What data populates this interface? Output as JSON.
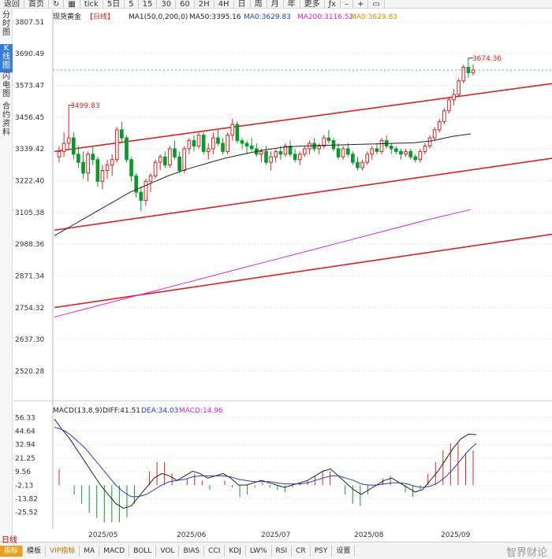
{
  "toolbar": {
    "items": [
      "返回",
      "首页",
      "↻",
      "▦",
      "tick",
      "5日",
      "5",
      "15",
      "30",
      "60",
      "2H",
      "4H",
      "日",
      "周",
      "月",
      "年",
      "更多",
      "ƒx",
      "–",
      "+",
      "▭"
    ]
  },
  "leftnav": {
    "items": [
      "分时图",
      "K线图",
      "闪电图",
      "合约资料"
    ],
    "active_index": 1
  },
  "legend": {
    "name": "现货黄金",
    "period": "【日线】",
    "ma1": "MA1(50,0,200,0)",
    "ma50": "MA50:3395.16",
    "ma0": "MA0:3629.83",
    "ma200": "MA200:3116.52",
    "ma0b": "MA0:3629.83"
  },
  "macd_legend": {
    "name": "MACD(13,8,9)",
    "diff": "DIFF:41.51",
    "dea": "DEA:34.03",
    "macd": "MACD:14.96"
  },
  "annotations": {
    "high": "3674.36",
    "low_label": "3499.83"
  },
  "x_labels": [
    "2025/05",
    "2025/06",
    "2025/07",
    "2025/08",
    "2025/09"
  ],
  "period_label": "日线",
  "bottom_tabs": [
    "指标",
    "模板",
    "VIP指标",
    "MA",
    "MACD",
    "BOLL",
    "VOL",
    "BIAS",
    "CCI",
    "KDJ",
    "LW%",
    "RSI",
    "CR",
    "PSY",
    "设置"
  ],
  "watermark": "智界财论",
  "colors": {
    "up": "#e02020",
    "down": "#0a9a2a",
    "ma50": "#222222",
    "ma200": "#e020e0",
    "dea": "#2040c0",
    "grid": "#d8d8d8"
  },
  "chart_data": [
    {
      "type": "candlestick",
      "title": "现货黄金【日线】",
      "y_ticks": [
        3807.51,
        3690.49,
        3573.47,
        3456.45,
        3339.42,
        3222.4,
        3105.38,
        2988.36,
        2871.34,
        2754.32,
        2637.3,
        2520.28
      ],
      "ylim": [
        2490,
        3830
      ],
      "x_ticks": [
        "2025/05",
        "2025/06",
        "2025/07",
        "2025/08",
        "2025/09"
      ],
      "candles": [
        [
          3310,
          3350,
          3290,
          3330
        ],
        [
          3330,
          3400,
          3310,
          3360
        ],
        [
          3360,
          3500,
          3340,
          3380
        ],
        [
          3380,
          3400,
          3300,
          3320
        ],
        [
          3320,
          3350,
          3270,
          3290
        ],
        [
          3290,
          3330,
          3230,
          3250
        ],
        [
          3250,
          3330,
          3220,
          3320
        ],
        [
          3320,
          3350,
          3280,
          3300
        ],
        [
          3300,
          3310,
          3200,
          3220
        ],
        [
          3220,
          3280,
          3190,
          3260
        ],
        [
          3260,
          3300,
          3230,
          3280
        ],
        [
          3280,
          3320,
          3240,
          3300
        ],
        [
          3300,
          3420,
          3290,
          3410
        ],
        [
          3410,
          3440,
          3360,
          3380
        ],
        [
          3380,
          3390,
          3290,
          3300
        ],
        [
          3300,
          3310,
          3220,
          3240
        ],
        [
          3240,
          3250,
          3160,
          3180
        ],
        [
          3180,
          3200,
          3110,
          3150
        ],
        [
          3150,
          3230,
          3130,
          3220
        ],
        [
          3220,
          3250,
          3180,
          3240
        ],
        [
          3240,
          3300,
          3230,
          3290
        ],
        [
          3290,
          3320,
          3260,
          3310
        ],
        [
          3310,
          3330,
          3270,
          3280
        ],
        [
          3280,
          3350,
          3270,
          3340
        ],
        [
          3340,
          3370,
          3300,
          3310
        ],
        [
          3310,
          3330,
          3250,
          3260
        ],
        [
          3260,
          3350,
          3250,
          3340
        ],
        [
          3340,
          3380,
          3320,
          3370
        ],
        [
          3370,
          3390,
          3330,
          3350
        ],
        [
          3350,
          3400,
          3340,
          3390
        ],
        [
          3390,
          3400,
          3320,
          3330
        ],
        [
          3330,
          3360,
          3300,
          3340
        ],
        [
          3340,
          3400,
          3320,
          3380
        ],
        [
          3380,
          3410,
          3350,
          3360
        ],
        [
          3360,
          3380,
          3320,
          3330
        ],
        [
          3330,
          3400,
          3320,
          3390
        ],
        [
          3390,
          3450,
          3370,
          3430
        ],
        [
          3430,
          3440,
          3360,
          3370
        ],
        [
          3370,
          3380,
          3340,
          3360
        ],
        [
          3360,
          3370,
          3320,
          3350
        ],
        [
          3350,
          3380,
          3330,
          3340
        ],
        [
          3340,
          3360,
          3310,
          3320
        ],
        [
          3320,
          3340,
          3290,
          3330
        ],
        [
          3330,
          3350,
          3280,
          3290
        ],
        [
          3290,
          3330,
          3260,
          3310
        ],
        [
          3310,
          3340,
          3290,
          3330
        ],
        [
          3330,
          3350,
          3300,
          3320
        ],
        [
          3320,
          3360,
          3310,
          3350
        ],
        [
          3350,
          3370,
          3310,
          3320
        ],
        [
          3320,
          3340,
          3290,
          3300
        ],
        [
          3300,
          3330,
          3280,
          3320
        ],
        [
          3320,
          3350,
          3310,
          3340
        ],
        [
          3340,
          3370,
          3320,
          3360
        ],
        [
          3360,
          3380,
          3330,
          3340
        ],
        [
          3340,
          3360,
          3320,
          3350
        ],
        [
          3350,
          3390,
          3340,
          3380
        ],
        [
          3380,
          3410,
          3360,
          3370
        ],
        [
          3370,
          3380,
          3330,
          3340
        ],
        [
          3340,
          3360,
          3300,
          3310
        ],
        [
          3310,
          3350,
          3300,
          3340
        ],
        [
          3340,
          3360,
          3310,
          3320
        ],
        [
          3320,
          3330,
          3280,
          3290
        ],
        [
          3290,
          3310,
          3260,
          3270
        ],
        [
          3270,
          3300,
          3260,
          3290
        ],
        [
          3290,
          3330,
          3280,
          3320
        ],
        [
          3320,
          3350,
          3300,
          3340
        ],
        [
          3340,
          3360,
          3320,
          3330
        ],
        [
          3330,
          3380,
          3320,
          3370
        ],
        [
          3370,
          3390,
          3340,
          3350
        ],
        [
          3350,
          3360,
          3320,
          3340
        ],
        [
          3340,
          3350,
          3320,
          3330
        ],
        [
          3330,
          3340,
          3300,
          3320
        ],
        [
          3320,
          3340,
          3310,
          3330
        ],
        [
          3330,
          3340,
          3300,
          3310
        ],
        [
          3310,
          3320,
          3290,
          3300
        ],
        [
          3300,
          3340,
          3290,
          3330
        ],
        [
          3330,
          3360,
          3320,
          3350
        ],
        [
          3350,
          3390,
          3340,
          3380
        ],
        [
          3380,
          3420,
          3370,
          3410
        ],
        [
          3410,
          3450,
          3400,
          3440
        ],
        [
          3440,
          3490,
          3430,
          3480
        ],
        [
          3480,
          3530,
          3470,
          3520
        ],
        [
          3520,
          3560,
          3500,
          3540
        ],
        [
          3540,
          3600,
          3530,
          3590
        ],
        [
          3590,
          3650,
          3580,
          3640
        ],
        [
          3640,
          3675,
          3600,
          3620
        ],
        [
          3620,
          3650,
          3610,
          3630
        ]
      ],
      "ma50": [
        3020,
        3060,
        3100,
        3140,
        3180,
        3210,
        3240,
        3265,
        3285,
        3305,
        3320,
        3335,
        3345,
        3350,
        3352,
        3354,
        3356,
        3358,
        3360,
        3362,
        3370,
        3385,
        3395
      ],
      "ma200": [
        2720,
        2760,
        2800,
        2840,
        2880,
        2920,
        2960,
        3000,
        3040,
        3080,
        3116
      ]
    },
    {
      "type": "bar",
      "title": "MACD(13,8,9)",
      "y_ticks": [
        56.33,
        44.64,
        32.94,
        21.25,
        9.56,
        -2.13,
        -13.82,
        -25.52
      ],
      "ylim": [
        -40,
        62
      ],
      "diff": [
        55,
        46,
        38,
        28,
        18,
        8,
        -2,
        -10,
        -18,
        -22,
        -20,
        -12,
        -4,
        4,
        8,
        6,
        2,
        6,
        10,
        8,
        4,
        6,
        8,
        4,
        -2,
        -2,
        0,
        2,
        0,
        -2,
        -4,
        -2,
        0,
        2,
        6,
        10,
        12,
        6,
        0,
        -6,
        -10,
        -6,
        -2,
        2,
        4,
        0,
        -4,
        -8,
        -6,
        2,
        10,
        20,
        30,
        38,
        42,
        41.51
      ],
      "dea": [
        48,
        46,
        42,
        36,
        30,
        22,
        14,
        6,
        -2,
        -8,
        -12,
        -12,
        -10,
        -6,
        -2,
        1,
        2,
        3,
        5,
        6,
        6,
        6,
        6,
        5,
        3,
        2,
        1,
        1,
        1,
        0,
        -1,
        -1,
        -1,
        0,
        2,
        4,
        6,
        6,
        4,
        2,
        -1,
        -2,
        -2,
        -1,
        0,
        0,
        -1,
        -3,
        -4,
        -3,
        0,
        5,
        12,
        20,
        28,
        34.03
      ],
      "macd": [
        7,
        0,
        -4,
        -8,
        -12,
        -14,
        -16,
        -16,
        -16,
        -14,
        -8,
        0,
        6,
        10,
        10,
        5,
        0,
        3,
        5,
        2,
        -2,
        0,
        2,
        -1,
        -5,
        -4,
        -1,
        1,
        -1,
        -2,
        -3,
        -1,
        1,
        2,
        4,
        6,
        6,
        0,
        -4,
        -8,
        -9,
        -4,
        0,
        3,
        4,
        0,
        -3,
        -5,
        -2,
        5,
        10,
        15,
        18,
        18,
        14,
        14.96
      ]
    }
  ]
}
